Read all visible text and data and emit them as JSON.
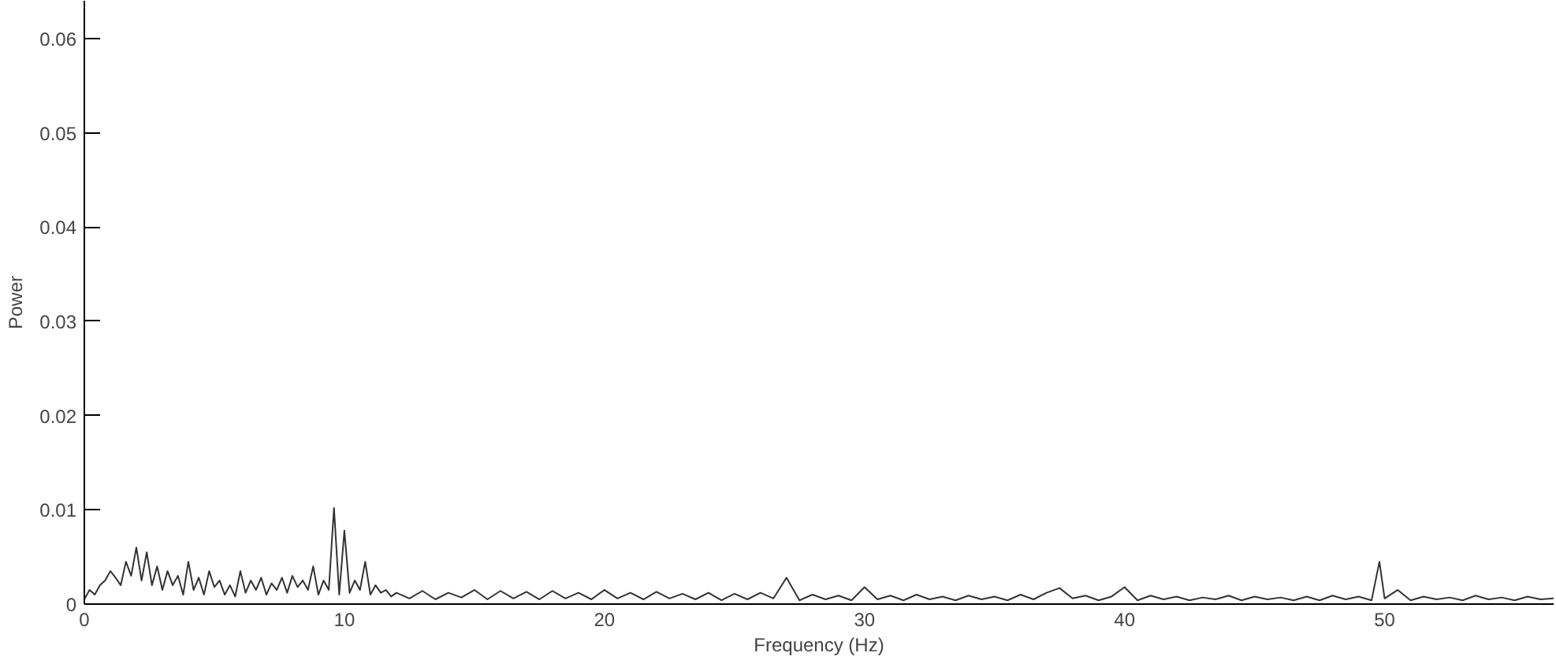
{
  "chart_data": {
    "type": "line",
    "xlabel": "Frequency (Hz)",
    "ylabel": "Power",
    "xlim": [
      0,
      56.5
    ],
    "ylim": [
      0,
      0.064
    ],
    "xticks": [
      0,
      10,
      20,
      30,
      40,
      50
    ],
    "yticks": [
      0,
      0.01,
      0.02,
      0.03,
      0.04,
      0.05,
      0.06
    ],
    "grid": false,
    "marker": "none",
    "line_style": "solid",
    "series": [
      {
        "color": "#333333",
        "x": [
          0,
          0.2,
          0.4,
          0.6,
          0.8,
          1.0,
          1.2,
          1.4,
          1.6,
          1.8,
          2.0,
          2.2,
          2.4,
          2.6,
          2.8,
          3.0,
          3.2,
          3.4,
          3.6,
          3.8,
          4.0,
          4.2,
          4.4,
          4.6,
          4.8,
          5.0,
          5.2,
          5.4,
          5.6,
          5.8,
          6.0,
          6.2,
          6.4,
          6.6,
          6.8,
          7.0,
          7.2,
          7.4,
          7.6,
          7.8,
          8.0,
          8.2,
          8.4,
          8.6,
          8.8,
          9.0,
          9.2,
          9.4,
          9.6,
          9.8,
          10.0,
          10.2,
          10.4,
          10.6,
          10.8,
          11.0,
          11.2,
          11.4,
          11.6,
          11.8,
          12.0,
          12.5,
          13.0,
          13.5,
          14.0,
          14.5,
          15.0,
          15.5,
          16.0,
          16.5,
          17.0,
          17.5,
          18.0,
          18.5,
          19.0,
          19.5,
          20.0,
          20.5,
          21.0,
          21.5,
          22.0,
          22.5,
          23.0,
          23.5,
          24.0,
          24.5,
          25.0,
          25.5,
          26.0,
          26.5,
          27.0,
          27.5,
          28.0,
          28.5,
          29.0,
          29.5,
          30.0,
          30.5,
          31.0,
          31.5,
          32.0,
          32.5,
          33.0,
          33.5,
          34.0,
          34.5,
          35.0,
          35.5,
          36.0,
          36.5,
          37.0,
          37.5,
          38.0,
          38.5,
          39.0,
          39.5,
          40.0,
          40.5,
          41.0,
          41.5,
          42.0,
          42.5,
          43.0,
          43.5,
          44.0,
          44.5,
          45.0,
          45.5,
          46.0,
          46.5,
          47.0,
          47.5,
          48.0,
          48.5,
          49.0,
          49.5,
          49.8,
          50.0,
          50.5,
          51.0,
          51.5,
          52.0,
          52.5,
          53.0,
          53.5,
          54.0,
          54.5,
          55.0,
          55.5,
          56.0,
          56.5
        ],
        "values": [
          0.0005,
          0.0015,
          0.001,
          0.002,
          0.0025,
          0.0035,
          0.0028,
          0.002,
          0.0045,
          0.003,
          0.006,
          0.0025,
          0.0055,
          0.002,
          0.004,
          0.0015,
          0.0035,
          0.002,
          0.003,
          0.001,
          0.0045,
          0.0015,
          0.0028,
          0.001,
          0.0035,
          0.0018,
          0.0025,
          0.001,
          0.002,
          0.0008,
          0.0035,
          0.0012,
          0.0025,
          0.0015,
          0.0028,
          0.001,
          0.0022,
          0.0015,
          0.0028,
          0.0012,
          0.003,
          0.0018,
          0.0025,
          0.0015,
          0.004,
          0.001,
          0.0025,
          0.0015,
          0.0102,
          0.001,
          0.0078,
          0.0012,
          0.0025,
          0.0015,
          0.0045,
          0.001,
          0.002,
          0.0012,
          0.0015,
          0.0008,
          0.0012,
          0.0006,
          0.0014,
          0.0005,
          0.0012,
          0.0007,
          0.0015,
          0.0005,
          0.0014,
          0.0006,
          0.0013,
          0.0005,
          0.0014,
          0.0006,
          0.0012,
          0.0005,
          0.0015,
          0.0006,
          0.0012,
          0.0005,
          0.0013,
          0.0006,
          0.0011,
          0.0005,
          0.0012,
          0.0004,
          0.0011,
          0.0005,
          0.0012,
          0.0006,
          0.0028,
          0.0004,
          0.001,
          0.0005,
          0.0009,
          0.0004,
          0.0018,
          0.0005,
          0.0009,
          0.0004,
          0.001,
          0.0005,
          0.0008,
          0.0004,
          0.0009,
          0.0005,
          0.0008,
          0.0004,
          0.001,
          0.0005,
          0.0012,
          0.0017,
          0.0006,
          0.0009,
          0.0004,
          0.0008,
          0.0018,
          0.0004,
          0.0009,
          0.0005,
          0.0008,
          0.0004,
          0.0007,
          0.0005,
          0.0009,
          0.0004,
          0.0008,
          0.0005,
          0.0007,
          0.0004,
          0.0008,
          0.0004,
          0.0009,
          0.0005,
          0.0008,
          0.0004,
          0.0045,
          0.0006,
          0.0015,
          0.0004,
          0.0008,
          0.0005,
          0.0007,
          0.0004,
          0.0009,
          0.0005,
          0.0007,
          0.0004,
          0.0008,
          0.0005,
          0.0006
        ]
      }
    ]
  }
}
